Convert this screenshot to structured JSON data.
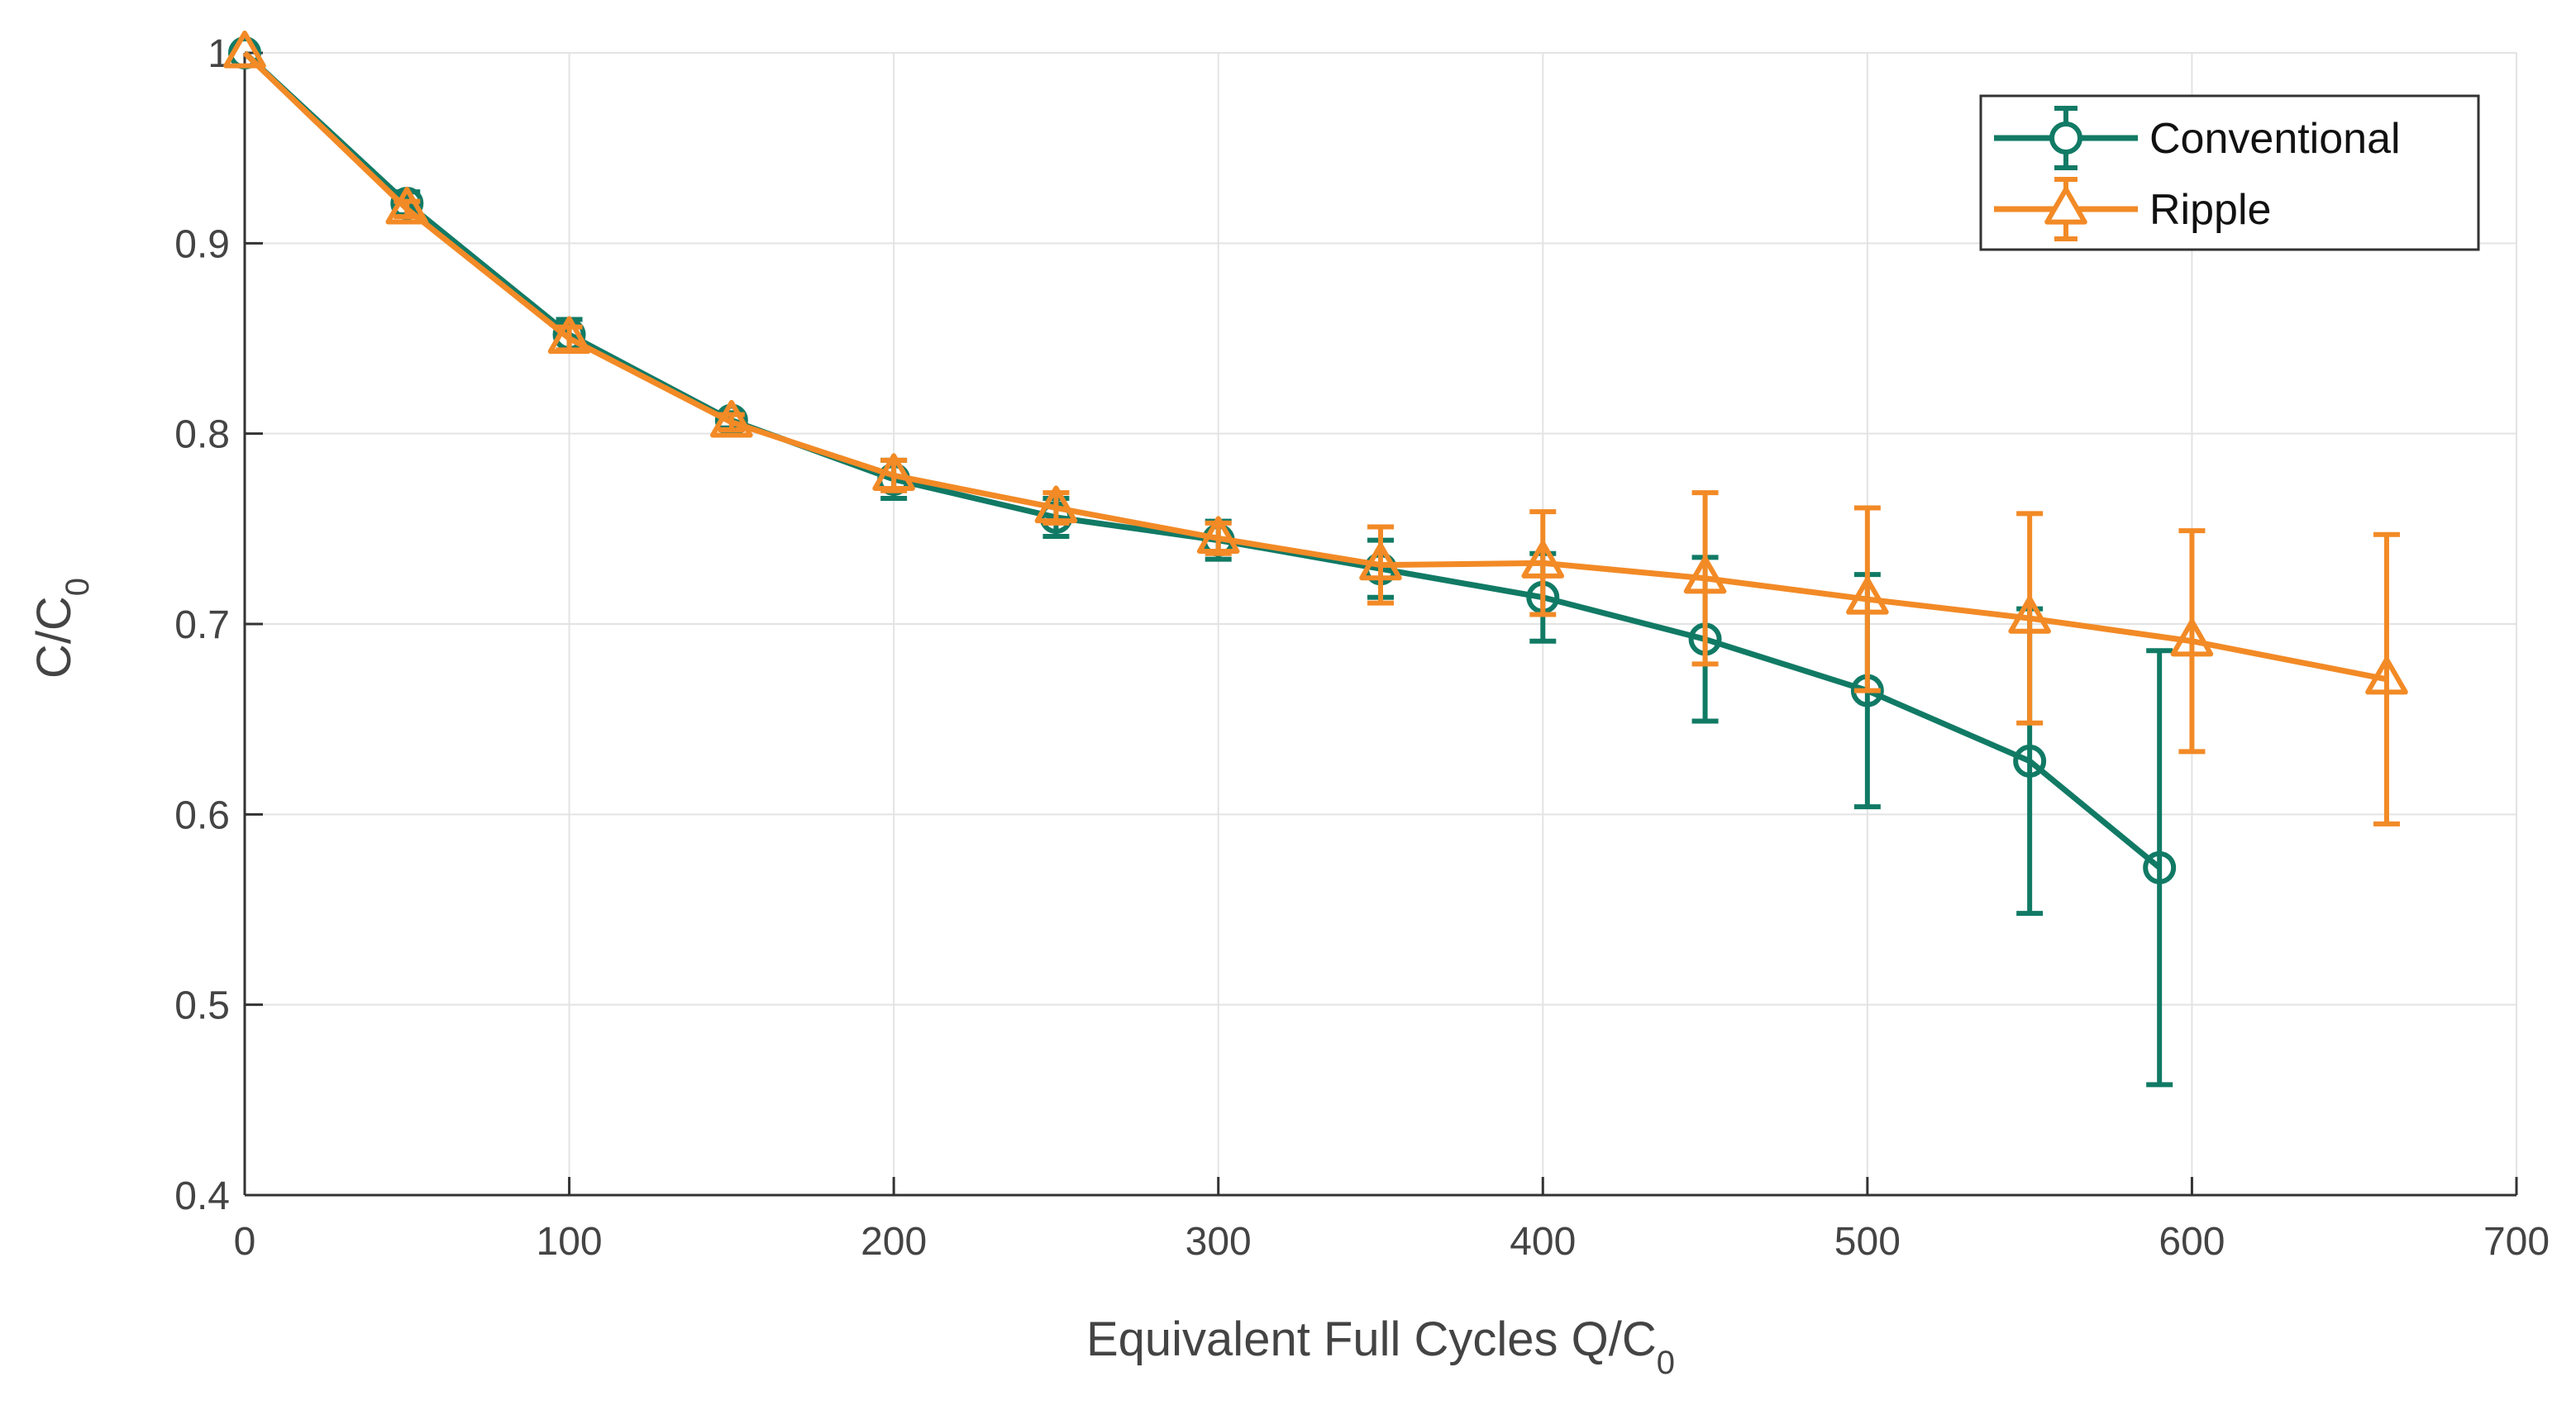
{
  "chart_data": {
    "type": "line",
    "title": "",
    "xlabel": {
      "main": "Equivalent Full Cycles Q/C",
      "sub": "0"
    },
    "ylabel": {
      "main": "C/C",
      "sub": "0"
    },
    "xlim": [
      0,
      700
    ],
    "ylim": [
      0.4,
      1.0
    ],
    "xticks": [
      0,
      100,
      200,
      300,
      400,
      500,
      600,
      700
    ],
    "yticks": [
      0.4,
      0.5,
      0.6,
      0.7,
      0.8,
      0.9,
      1.0
    ],
    "xtick_labels": [
      "0",
      "100",
      "200",
      "300",
      "400",
      "500",
      "600",
      "700"
    ],
    "ytick_labels": [
      "0.4",
      "0.5",
      "0.6",
      "0.7",
      "0.8",
      "0.9",
      "1"
    ],
    "grid": true,
    "legend_position": "top-right",
    "series": [
      {
        "name": "Conventional",
        "color": "#117a65",
        "marker": "circle",
        "x": [
          0,
          50,
          100,
          150,
          200,
          250,
          300,
          350,
          400,
          450,
          500,
          550,
          590
        ],
        "y": [
          1.0,
          0.921,
          0.852,
          0.807,
          0.776,
          0.756,
          0.744,
          0.729,
          0.714,
          0.692,
          0.665,
          0.628,
          0.572
        ],
        "err": [
          0.0,
          0.006,
          0.008,
          0.004,
          0.01,
          0.01,
          0.01,
          0.015,
          0.023,
          0.043,
          0.061,
          0.08,
          0.114
        ]
      },
      {
        "name": "Ripple",
        "color": "#f28a26",
        "marker": "triangle",
        "x": [
          0,
          50,
          100,
          150,
          200,
          250,
          300,
          350,
          400,
          450,
          500,
          550,
          600,
          660
        ],
        "y": [
          1.0,
          0.918,
          0.85,
          0.806,
          0.778,
          0.761,
          0.745,
          0.731,
          0.732,
          0.724,
          0.713,
          0.703,
          0.691,
          0.671
        ],
        "err": [
          0.0,
          0.004,
          0.006,
          0.004,
          0.008,
          0.008,
          0.008,
          0.02,
          0.027,
          0.045,
          0.048,
          0.055,
          0.058,
          0.076
        ]
      }
    ]
  }
}
